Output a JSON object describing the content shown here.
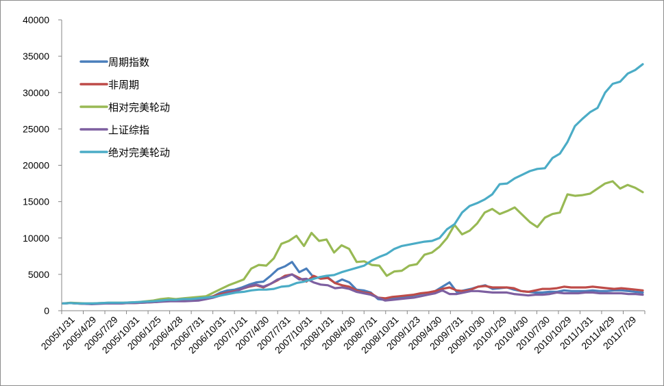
{
  "chart_data": {
    "type": "line",
    "title": "",
    "xlabel": "",
    "ylabel": "",
    "ylim": [
      0,
      40000
    ],
    "yticks": [
      0,
      5000,
      10000,
      15000,
      20000,
      25000,
      30000,
      35000,
      40000
    ],
    "grid": false,
    "legend_position": "top-left",
    "x_tick_labels": [
      "2005/1/31",
      "2005/4/29",
      "2005/7/29",
      "2005/10/31",
      "2006/1/25",
      "2006/4/28",
      "2006/7/31",
      "2006/10/31",
      "2007/1/31",
      "2007/4/30",
      "2007/7/31",
      "2007/10/31",
      "2008/1/31",
      "2008/4/30",
      "2008/7/31",
      "2008/10/31",
      "2009/1/23",
      "2009/4/30",
      "2009/7/31",
      "2009/10/30",
      "2010/1/29",
      "2010/4/30",
      "2010/7/30",
      "2010/10/29",
      "2011/1/31",
      "2011/4/29",
      "2011/7/29"
    ],
    "series": [
      {
        "name": "周期指数",
        "color": "#4a7ebb",
        "values": [
          1000,
          1050,
          1000,
          950,
          980,
          1000,
          1050,
          1000,
          1000,
          1100,
          1150,
          1200,
          1250,
          1300,
          1350,
          1400,
          1500,
          1500,
          1550,
          1600,
          1800,
          2000,
          2500,
          2800,
          2900,
          3200,
          3600,
          3900,
          4000,
          4800,
          5700,
          6100,
          6700,
          5300,
          5800,
          4600,
          4500,
          4600,
          3800,
          4300,
          3900,
          2900,
          2800,
          2500,
          1600,
          1500,
          1700,
          1800,
          1900,
          2100,
          2300,
          2500,
          2700,
          3300,
          3900,
          2600,
          2800,
          3000,
          3300,
          3500,
          3000,
          3100,
          3200,
          2900,
          2700,
          2600,
          2500,
          2500,
          2600,
          2600,
          2800,
          2700,
          2700,
          2700,
          2800,
          2700,
          2700,
          2800,
          2800,
          2700,
          2600,
          2500
        ]
      },
      {
        "name": "非周期",
        "color": "#be4b48",
        "values": [
          1000,
          1050,
          1000,
          950,
          960,
          1000,
          1000,
          1000,
          1000,
          1050,
          1050,
          1100,
          1150,
          1200,
          1300,
          1400,
          1400,
          1400,
          1500,
          1600,
          1700,
          2000,
          2300,
          2500,
          2700,
          3000,
          3300,
          3500,
          3200,
          3700,
          4200,
          4800,
          5000,
          4500,
          4000,
          4800,
          4400,
          4500,
          3800,
          3500,
          3300,
          2800,
          2500,
          2400,
          1800,
          1700,
          1900,
          2000,
          2100,
          2200,
          2400,
          2500,
          2700,
          3000,
          3200,
          2800,
          2700,
          2900,
          3300,
          3400,
          3200,
          3200,
          3200,
          3100,
          2700,
          2600,
          2800,
          3000,
          3000,
          3100,
          3300,
          3200,
          3200,
          3200,
          3300,
          3200,
          3100,
          3000,
          3100,
          3000,
          2900,
          2800
        ]
      },
      {
        "name": "相对完美轮动",
        "color": "#98b954",
        "values": [
          1000,
          1100,
          1050,
          1000,
          1000,
          1050,
          1100,
          1100,
          1100,
          1150,
          1200,
          1300,
          1400,
          1600,
          1700,
          1600,
          1700,
          1800,
          1900,
          2000,
          2500,
          3000,
          3500,
          3900,
          4300,
          5800,
          6300,
          6200,
          7200,
          9200,
          9600,
          10300,
          8900,
          10700,
          9600,
          9800,
          8000,
          9000,
          8500,
          6700,
          6800,
          6300,
          6200,
          4800,
          5400,
          5500,
          6200,
          6400,
          7700,
          8000,
          8800,
          10000,
          11800,
          10500,
          11000,
          12000,
          13500,
          14000,
          13300,
          13700,
          14200,
          13200,
          12200,
          11500,
          12800,
          13300,
          13500,
          16000,
          15800,
          15900,
          16100,
          16800,
          17500,
          17800,
          16800,
          17300,
          16900,
          16300
        ]
      },
      {
        "name": "上证综指",
        "color": "#7d5fa0",
        "values": [
          1000,
          1050,
          1000,
          950,
          900,
          950,
          1000,
          1000,
          1000,
          1050,
          1050,
          1100,
          1150,
          1200,
          1250,
          1300,
          1300,
          1300,
          1350,
          1400,
          1600,
          1800,
          2100,
          2400,
          2600,
          3000,
          3400,
          3600,
          3300,
          3700,
          4300,
          4600,
          5000,
          4300,
          4400,
          3900,
          3600,
          3500,
          3100,
          3200,
          3000,
          2600,
          2400,
          2200,
          1800,
          1400,
          1500,
          1600,
          1700,
          1800,
          2000,
          2200,
          2400,
          2800,
          2300,
          2300,
          2500,
          2700,
          2700,
          2600,
          2500,
          2500,
          2500,
          2300,
          2200,
          2100,
          2200,
          2200,
          2300,
          2500,
          2400,
          2400,
          2400,
          2500,
          2500,
          2400,
          2400,
          2400,
          2400,
          2300,
          2300,
          2200
        ]
      },
      {
        "name": "绝对完美轮动",
        "color": "#4bacc6",
        "values": [
          1000,
          1050,
          1000,
          1000,
          1000,
          1050,
          1100,
          1100,
          1100,
          1150,
          1200,
          1250,
          1300,
          1400,
          1500,
          1500,
          1600,
          1600,
          1700,
          1800,
          1900,
          2100,
          2300,
          2500,
          2600,
          2800,
          2900,
          2900,
          3000,
          3300,
          3400,
          3800,
          4000,
          4300,
          4600,
          4800,
          4900,
          5300,
          5600,
          5900,
          6200,
          6900,
          7400,
          7800,
          8500,
          8900,
          9100,
          9300,
          9500,
          9600,
          10000,
          11200,
          11900,
          13500,
          14400,
          14800,
          15300,
          16000,
          17400,
          17500,
          18200,
          18700,
          19200,
          19500,
          19600,
          21000,
          21600,
          23200,
          25400,
          26400,
          27300,
          27900,
          30000,
          31200,
          31500,
          32600,
          33100,
          33900
        ]
      }
    ]
  }
}
